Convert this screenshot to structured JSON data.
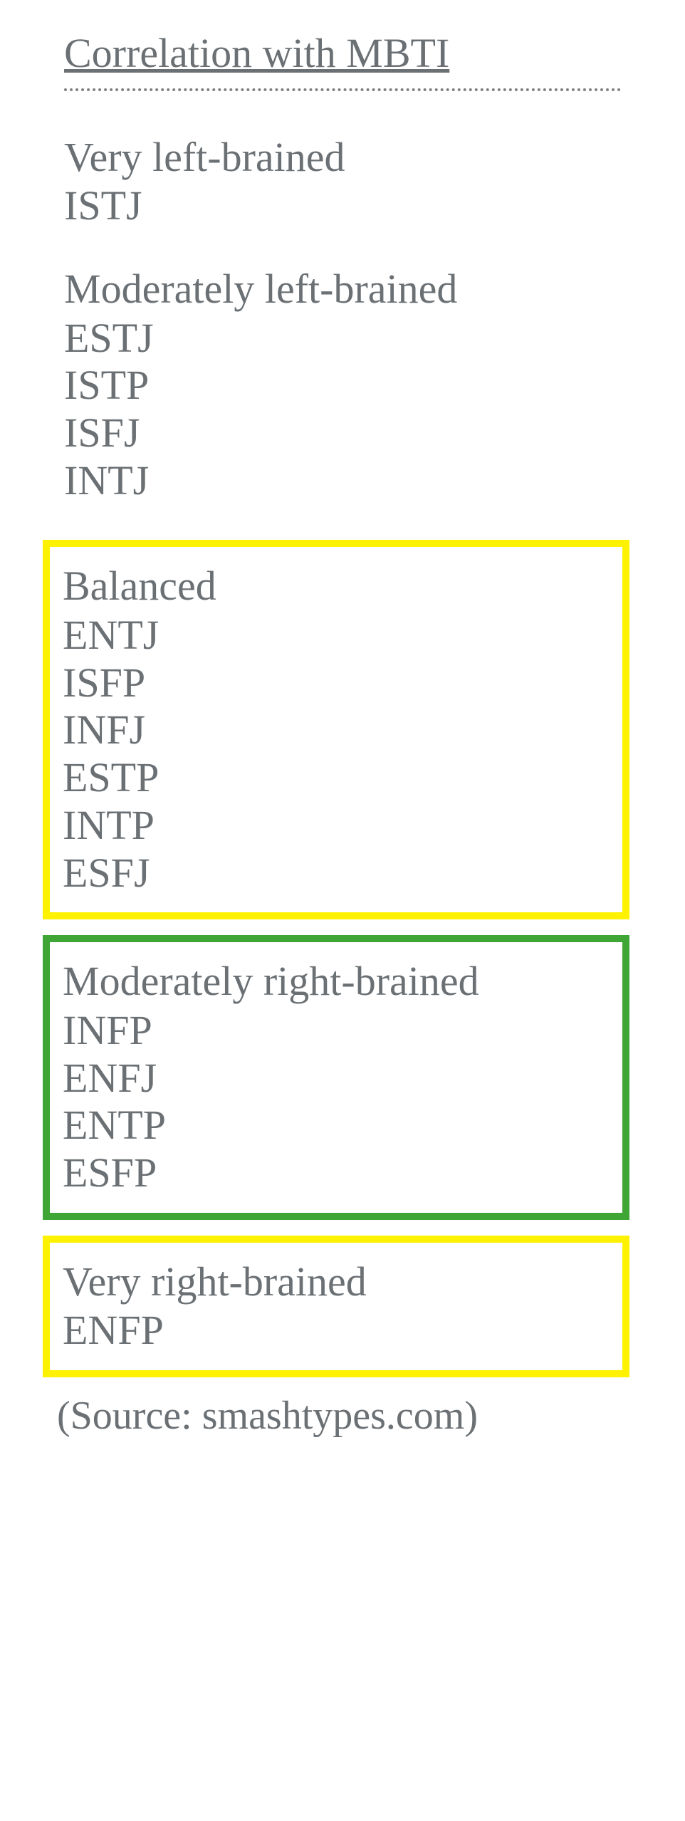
{
  "title": "Correlation with MBTI",
  "colors": {
    "text": "#6b7074",
    "box_yellow": "#fef200",
    "box_green": "#3fa535",
    "dotted_rule": "#808080",
    "background": "#ffffff"
  },
  "typography": {
    "font_family": "Georgia, 'Times New Roman', serif",
    "font_size_pt": 44,
    "line_height": 1.15
  },
  "groups": [
    {
      "label": "Very left-brained",
      "items": [
        "ISTJ"
      ],
      "box": null
    },
    {
      "label": "Moderately left-brained",
      "items": [
        "ESTJ",
        "ISTP",
        "ISFJ",
        "INTJ"
      ],
      "box": null
    },
    {
      "label": "Balanced",
      "items": [
        "ENTJ",
        "ISFP",
        "INFJ",
        "ESTP",
        "INTP",
        "ESFJ"
      ],
      "box": "yellow"
    },
    {
      "label": "Moderately right-brained",
      "items": [
        "INFP",
        "ENFJ",
        "ENTP",
        "ESFP"
      ],
      "box": "green"
    },
    {
      "label": "Very right-brained",
      "items": [
        "ENFP"
      ],
      "box": "yellow"
    }
  ],
  "source": "(Source: smashtypes.com)"
}
